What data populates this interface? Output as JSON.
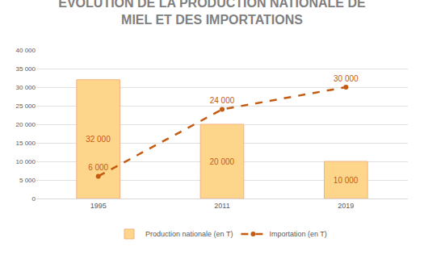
{
  "chart_data": {
    "type": "bar",
    "title": "ÉVOLUTION DE LA PRODUCTION NATIONALE DE MIEL ET DES IMPORTATIONS",
    "categories": [
      "1995",
      "2011",
      "2019"
    ],
    "series": [
      {
        "name": "Production nationale (en T)",
        "type": "bar",
        "color": "#fdd68c",
        "values": [
          32000,
          20000,
          10000
        ],
        "value_labels": [
          "32 000",
          "20 000",
          "10 000"
        ]
      },
      {
        "name": "Importation (en T)",
        "type": "line",
        "color": "#c55a11",
        "line_style": "dash",
        "marker": "circle",
        "values": [
          6000,
          24000,
          30000
        ],
        "value_labels": [
          "6 000",
          "24 000",
          "30 000"
        ]
      }
    ],
    "ylim": [
      0,
      40000
    ],
    "yticks": [
      0,
      {
        "value": 5000,
        "label": "5 000"
      },
      {
        "value": 10000,
        "label": "10 000"
      },
      {
        "value": 15000,
        "label": "15 000"
      },
      {
        "value": 20000,
        "label": "20 000"
      },
      {
        "value": 25000,
        "label": "25 000"
      },
      {
        "value": 30000,
        "label": "30 000"
      },
      {
        "value": 35000,
        "label": "35 000"
      },
      {
        "value": 40000,
        "label": "40 000"
      }
    ],
    "grid": true,
    "legend": "bottom",
    "data_labels": true
  }
}
